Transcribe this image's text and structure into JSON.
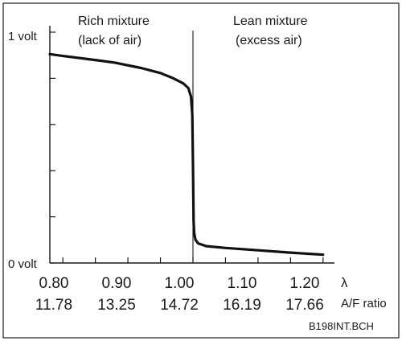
{
  "chart_data": {
    "type": "line",
    "title": "",
    "ylabel": "",
    "xlabel": "λ",
    "secondary_xlabel": "A/F ratio",
    "x_ticks": [
      "0.80",
      "0.90",
      "1.00",
      "1.10",
      "1.20"
    ],
    "x_ticks_secondary": [
      "11.78",
      "13.25",
      "14.72",
      "16.19",
      "17.66"
    ],
    "y_tick_labels": {
      "top": "1 volt",
      "bottom": "0 volt"
    },
    "xlim": [
      0.78,
      1.22
    ],
    "ylim": [
      0,
      1.0
    ],
    "grid": false,
    "regions": {
      "rich": [
        "Rich mixture",
        "(lack of air)"
      ],
      "lean": [
        "Lean mixture",
        "(excess air)"
      ]
    },
    "series": [
      {
        "x": [
          0.78,
          0.8,
          0.84,
          0.88,
          0.92,
          0.95,
          0.97,
          0.985,
          0.993,
          0.997,
          0.999,
          1.0,
          1.001,
          1.002,
          1.004,
          1.008,
          1.02,
          1.05,
          1.1,
          1.15,
          1.2
        ],
        "y": [
          0.905,
          0.897,
          0.883,
          0.868,
          0.845,
          0.823,
          0.8,
          0.778,
          0.758,
          0.72,
          0.64,
          0.43,
          0.18,
          0.128,
          0.1,
          0.085,
          0.073,
          0.065,
          0.055,
          0.045,
          0.036
        ]
      }
    ],
    "figure_code": "B198INT.BCH"
  }
}
